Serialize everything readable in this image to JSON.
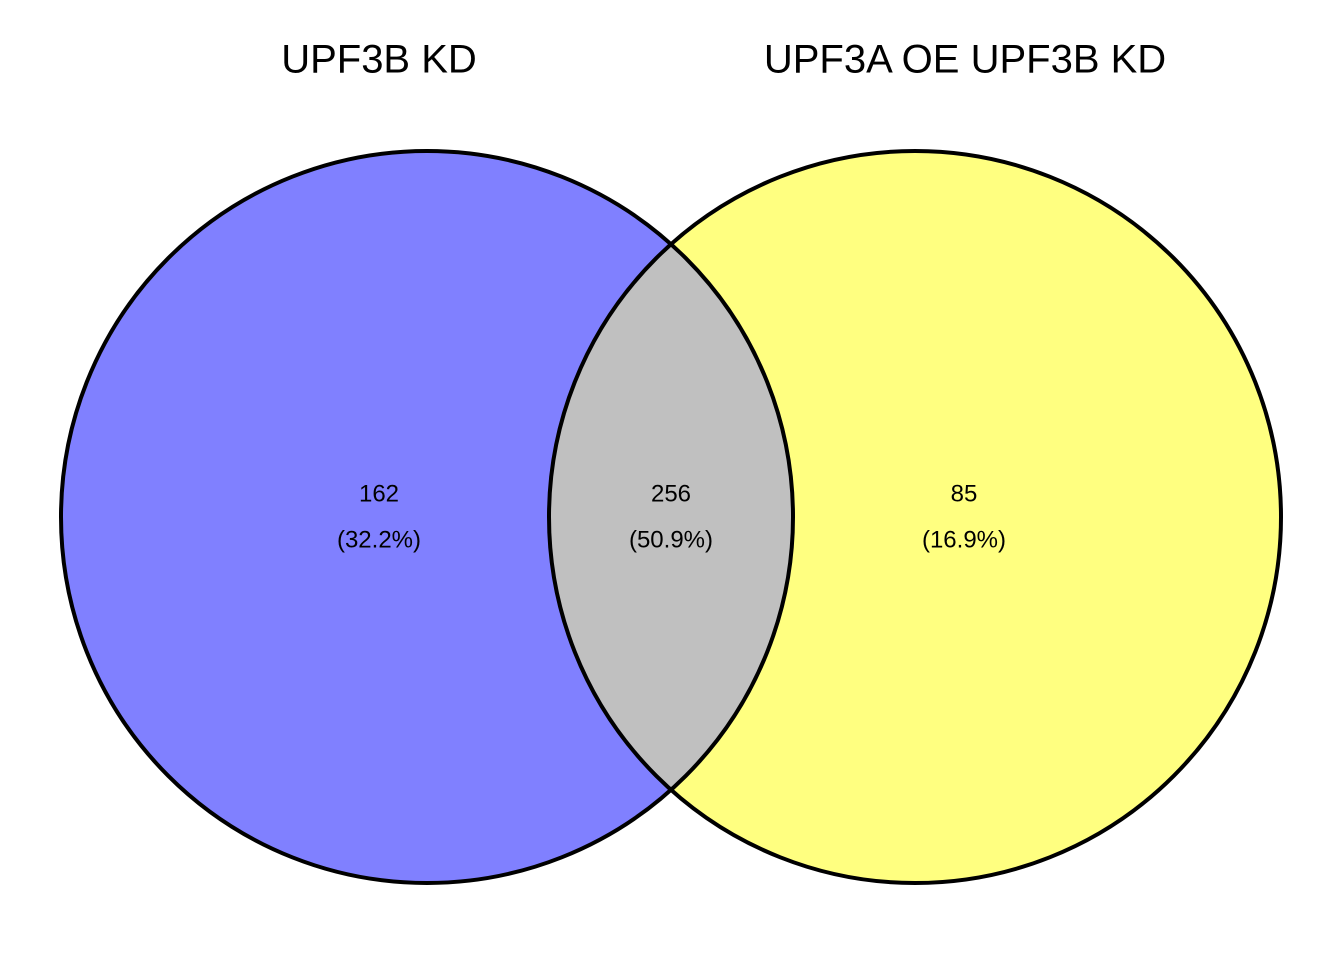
{
  "chart_data": {
    "type": "venn",
    "sets": [
      {
        "name": "UPF3B KD",
        "color": "#8080ff"
      },
      {
        "name": "UPF3A OE UPF3B KD",
        "color": "#ffff80"
      }
    ],
    "regions": [
      "UPF3B KD only",
      "both",
      "UPF3A OE UPF3B KD only"
    ],
    "values": [
      162,
      256,
      85
    ],
    "percents": [
      32.2,
      50.9,
      16.9
    ],
    "percent_labels": [
      "(32.2%)",
      "(50.9%)",
      "(16.9%)"
    ]
  }
}
